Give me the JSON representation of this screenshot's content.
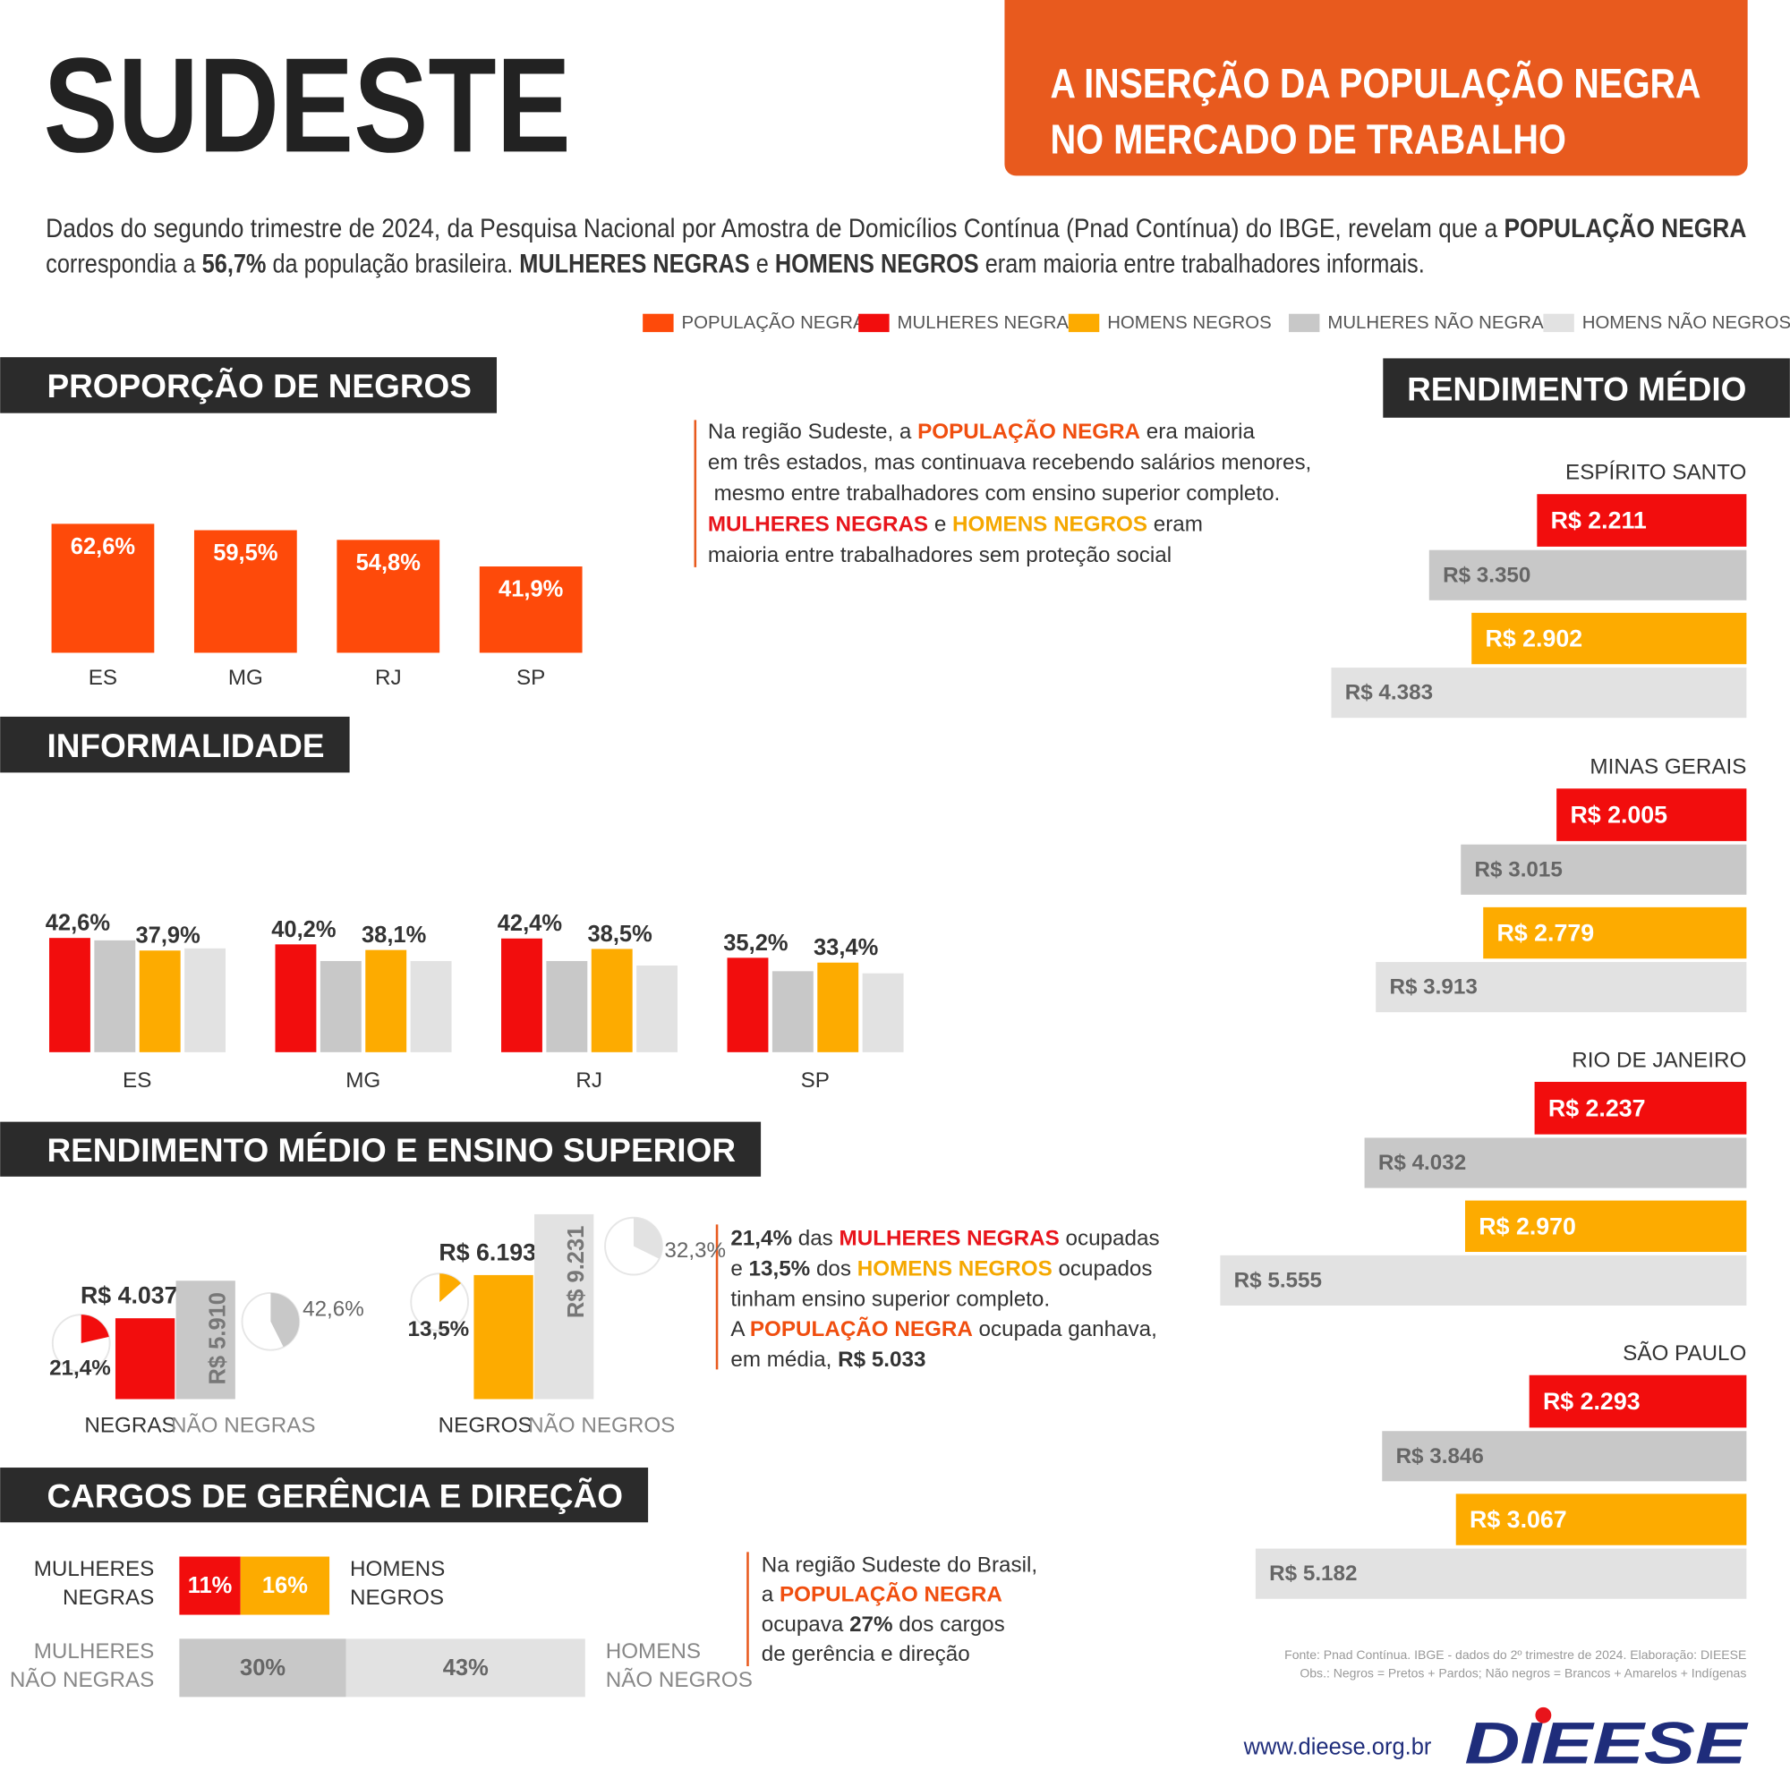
{
  "header": {
    "title": "SUDESTE",
    "banner": [
      "A INSERÇÃO DA POPULAÇÃO NEGRA",
      "NO MERCADO DE TRABALHO"
    ]
  },
  "intro": [
    [
      "Dados do segundo trimestre de 2024, da Pesquisa Nacional por Amostra de Domicílios Contínua (Pnad Contínua) do IBGE, revelam que a ",
      "POPULAÇÃO NEGRA"
    ],
    [
      "correspondia a ",
      "56,7%",
      " da população brasileira. ",
      "MULHERES NEGRAS",
      " e ",
      "HOMENS NEGROS",
      " eram maioria entre trabalhadores informais."
    ]
  ],
  "legend": [
    {
      "name": "POPULAÇÃO NEGRA",
      "color": "#fe4a0a"
    },
    {
      "name": "MULHERES NEGRAS",
      "color": "#f20d0d"
    },
    {
      "name": "HOMENS NEGROS",
      "color": "#fdab00"
    },
    {
      "name": "MULHERES NÃO NEGRAS",
      "color": "#c8c8c8"
    },
    {
      "name": "HOMENS NÃO NEGROS",
      "color": "#e2e2e2"
    }
  ],
  "notes": [
    [
      [
        "Na região Sudeste, a ",
        "POPULAÇÃO NEGRA",
        " era maioria"
      ],
      [
        "em três estados, mas continuava recebendo salários menores,"
      ],
      [
        " mesmo entre trabalhadores com ensino superior completo."
      ],
      [
        "MULHERES NEGRAS",
        " e ",
        "HOMENS NEGROS",
        " eram"
      ],
      [
        "maioria entre trabalhadores sem proteção social"
      ]
    ],
    [
      [
        "21,4%",
        " das ",
        "MULHERES NEGRAS",
        " ocupadas"
      ],
      [
        "e ",
        "13,5%",
        " dos ",
        "HOMENS NEGROS",
        " ocupados"
      ],
      [
        "tinham ensino superior completo."
      ],
      [
        "A ",
        "POPULAÇÃO NEGRA",
        " ocupada ganhava,"
      ],
      [
        "em média, ",
        "R$ 5.033"
      ]
    ],
    [
      [
        "Na região Sudeste do Brasil,"
      ],
      [
        "a ",
        "POPULAÇÃO NEGRA"
      ],
      [
        "ocupava ",
        "27%",
        " dos cargos"
      ],
      [
        "de gerência e direção"
      ]
    ]
  ],
  "chart_data": [
    {
      "type": "bar",
      "title": "PROPORÇÃO DE NEGROS",
      "categories": [
        "ES",
        "MG",
        "RJ",
        "SP"
      ],
      "values": [
        62.6,
        59.5,
        54.8,
        41.9
      ],
      "value_labels": [
        "62,6%",
        "59,5%",
        "54,8%",
        "41,9%"
      ],
      "color": "#fe4a0a"
    },
    {
      "type": "grouped-bar",
      "title": "INFORMALIDADE",
      "categories": [
        "ES",
        "MG",
        "RJ",
        "SP"
      ],
      "series": [
        {
          "color": "#f20d0d",
          "values": [
            42.6,
            40.2,
            42.4,
            35.2
          ],
          "value_labels": [
            "42,6%",
            "40,2%",
            "42,4%",
            "35,2%"
          ]
        },
        {
          "color": "#c8c8c8",
          "values": [
            41.7,
            34.0,
            34.0,
            30.2
          ]
        },
        {
          "color": "#fdab00",
          "values": [
            37.9,
            38.1,
            38.5,
            33.4
          ],
          "value_labels": [
            "37,9%",
            "38,1%",
            "38,5%",
            "33,4%"
          ]
        },
        {
          "color": "#e2e2e2",
          "values": [
            38.7,
            34.0,
            32.3,
            29.4
          ]
        }
      ]
    },
    {
      "type": "hbar",
      "title": "RENDIMENTO MÉDIO",
      "categories": [
        "ESPÍRITO SANTO",
        "MINAS GERAIS",
        "RIO DE JANEIRO",
        "SÃO PAULO"
      ],
      "series": [
        {
          "color": "#f20d0d",
          "values": [
            2211,
            2005,
            2237,
            2293
          ],
          "value_labels": [
            "R$ 2.211",
            "R$ 2.005",
            "R$ 2.237",
            "R$ 2.293"
          ]
        },
        {
          "color": "#c8c8c8",
          "values": [
            3350,
            3015,
            4032,
            3846
          ],
          "value_labels": [
            "R$ 3.350",
            "R$ 3.015",
            "R$ 4.032",
            "R$ 3.846"
          ]
        },
        {
          "color": "#fdab00",
          "values": [
            2902,
            2779,
            2970,
            3067
          ],
          "value_labels": [
            "R$ 2.902",
            "R$ 2.779",
            "R$ 2.970",
            "R$ 3.067"
          ]
        },
        {
          "color": "#e2e2e2",
          "values": [
            4383,
            3913,
            5555,
            5182
          ],
          "value_labels": [
            "R$ 4.383",
            "R$ 3.913",
            "R$ 5.555",
            "R$ 5.182"
          ]
        }
      ]
    },
    {
      "type": "bar-pie",
      "title": "RENDIMENTO MÉDIO E ENSINO SUPERIOR",
      "categories": [
        "NEGRAS",
        "NÃO NEGRAS",
        "NEGROS",
        "NÃO NEGROS"
      ],
      "values": [
        4037,
        5910,
        6193,
        9231
      ],
      "value_labels": [
        "R$ 4.037",
        "R$ 5.910",
        "R$ 6.193",
        "R$ 9.231"
      ],
      "colors": [
        "#f20d0d",
        "#c8c8c8",
        "#fdab00",
        "#e2e2e2"
      ],
      "pie_values": [
        21.4,
        42.6,
        13.5,
        32.3
      ],
      "pie_labels": [
        "21,4%",
        "42,6%",
        "13,5%",
        "32,3%"
      ]
    },
    {
      "type": "stacked-hbar",
      "title": "CARGOS DE GERÊNCIA E DIREÇÃO",
      "rows": [
        {
          "left_label": [
            "MULHERES",
            "NEGRAS"
          ],
          "right_label": [
            "HOMENS",
            "NEGROS"
          ],
          "values": [
            11,
            16
          ],
          "value_labels": [
            "11%",
            "16%"
          ],
          "colors": [
            "#f20d0d",
            "#fdab00"
          ]
        },
        {
          "left_label": [
            "MULHERES",
            "NÃO NEGRAS"
          ],
          "right_label": [
            "HOMENS",
            "NÃO NEGROS"
          ],
          "values": [
            30,
            43
          ],
          "value_labels": [
            "30%",
            "43%"
          ],
          "colors": [
            "#c8c8c8",
            "#e2e2e2"
          ]
        }
      ]
    }
  ],
  "footer": {
    "source": [
      "Fonte: Pnad Contínua. IBGE - dados do 2º trimestre de 2024. Elaboração: DIEESE",
      "Obs.: Negros = Pretos + Pardos; Não negros = Brancos + Amarelos + Indígenas"
    ],
    "url": "www.dieese.org.br",
    "logo": "DIEESE"
  }
}
